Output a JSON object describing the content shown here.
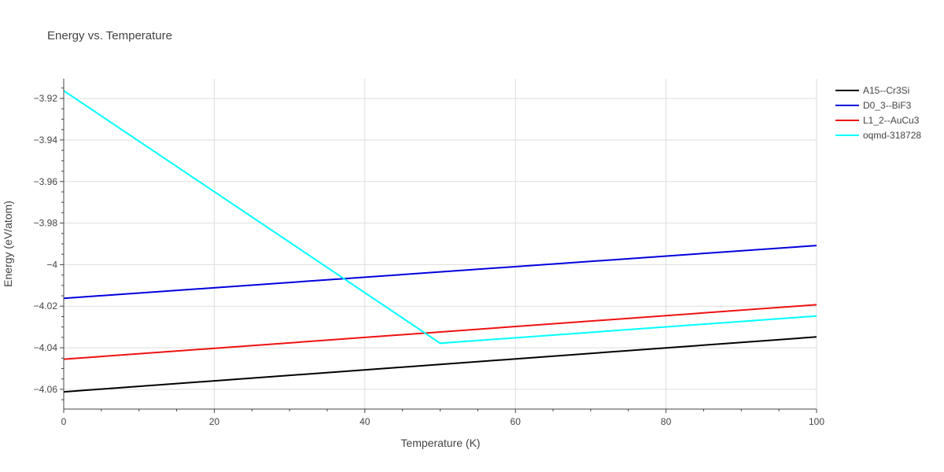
{
  "chart_data": {
    "type": "line",
    "title": "Energy vs. Temperature",
    "xlabel": "Temperature (K)",
    "ylabel": "Energy (eV/atom)",
    "xlim": [
      0,
      100
    ],
    "ylim": [
      -4.0695,
      -3.9105
    ],
    "xticks": [
      0,
      20,
      40,
      60,
      80,
      100
    ],
    "xtick_labels": [
      "0",
      "20",
      "40",
      "60",
      "80",
      "100"
    ],
    "yticks": [
      -4.06,
      -4.04,
      -4.02,
      -4.0,
      -3.98,
      -3.96,
      -3.94,
      -3.92
    ],
    "ytick_labels": [
      "−4.06",
      "−4.04",
      "−4.02",
      "−4",
      "−3.98",
      "−3.96",
      "−3.94",
      "−3.92"
    ],
    "grid": true,
    "legend_position": "top-right",
    "series": [
      {
        "name": "A15--Cr3Si",
        "color": "#000000",
        "x": [
          0,
          100
        ],
        "y": [
          -4.0612,
          -4.0348
        ]
      },
      {
        "name": "D0_3--BiF3",
        "color": "#0000dd",
        "x": [
          0,
          100
        ],
        "y": [
          -4.0162,
          -3.9908
        ]
      },
      {
        "name": "L1_2--AuCu3",
        "color": "#ee1111",
        "x": [
          0,
          100
        ],
        "y": [
          -4.0455,
          -4.0193
        ]
      },
      {
        "name": "oqmd-318728",
        "color": "#00ffff",
        "x": [
          0,
          50,
          100
        ],
        "y": [
          -3.9163,
          -4.0378,
          -4.0247
        ]
      }
    ]
  }
}
